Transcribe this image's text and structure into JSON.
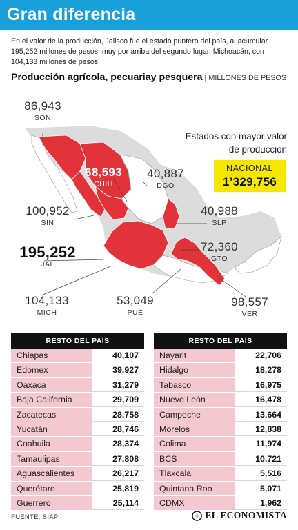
{
  "header": {
    "title": "Gran diferencia"
  },
  "intro": {
    "text": "En el valor de la producción, Jalisco  fue el estado puntero del país, al acumular 195,252 millones de pesos, muy por arriba del segundo lugar, Michoacán, con 104,133 millones de pesos."
  },
  "subhead": {
    "bold": "Producción agrícola, pecuariay pesquera",
    "thin": " | MILLONES DE PESOS"
  },
  "side_title": {
    "line1": "Estados con mayor valor",
    "line2": "de producción"
  },
  "nacional": {
    "label": "NACIONAL",
    "value": "1’329,756"
  },
  "colors": {
    "header": "#1aa0d8",
    "highlight_states": "#e2333b",
    "other_states": "#ffffff",
    "map_background": "#dcdcdc",
    "table_name_bg": "#f3c9cf",
    "nacional_bg": "#f5e600"
  },
  "chart_data": [
    {
      "type": "map",
      "title": "Producción agrícola, pecuariay pesquera",
      "unit": "MILLONES DE PESOS",
      "states": [
        {
          "code": "SON",
          "value": "86,943"
        },
        {
          "code": "CHIH",
          "value": "68,593"
        },
        {
          "code": "DGO",
          "value": "40,887"
        },
        {
          "code": "SIN",
          "value": "100,952"
        },
        {
          "code": "SLP",
          "value": "40,988"
        },
        {
          "code": "JAL",
          "value": "195,252"
        },
        {
          "code": "GTO",
          "value": "72,360"
        },
        {
          "code": "MICH",
          "value": "104,133"
        },
        {
          "code": "PUE",
          "value": "53,049"
        },
        {
          "code": "VER",
          "value": "98,557"
        }
      ],
      "nacional": "1’329,756"
    },
    {
      "type": "table",
      "title": "RESTO DEL PAÍS",
      "rows": [
        {
          "name": "Chiapas",
          "value": "40,107"
        },
        {
          "name": "Edomex",
          "value": "39,927"
        },
        {
          "name": "Oaxaca",
          "value": "31,279"
        },
        {
          "name": "Baja California",
          "value": "29,709"
        },
        {
          "name": "Zacatecas",
          "value": "28,758"
        },
        {
          "name": "Yucatán",
          "value": "28,746"
        },
        {
          "name": "Coahuila",
          "value": "28,374"
        },
        {
          "name": "Tamaulipas",
          "value": "27,808"
        },
        {
          "name": "Aguascalientes",
          "value": "26,217"
        },
        {
          "name": "Querétaro",
          "value": "25,819"
        },
        {
          "name": "Guerrero",
          "value": "25,114"
        }
      ]
    },
    {
      "type": "table",
      "title": "RESTO DEL PAÍS",
      "rows": [
        {
          "name": "Nayarit",
          "value": "22,706"
        },
        {
          "name": "Hidalgo",
          "value": "18,278"
        },
        {
          "name": "Tabasco",
          "value": "16,975"
        },
        {
          "name": "Nuevo León",
          "value": "16,478"
        },
        {
          "name": "Campeche",
          "value": "13,664"
        },
        {
          "name": "Morelos",
          "value": "12,838"
        },
        {
          "name": "Colima",
          "value": "11,974"
        },
        {
          "name": "BCS",
          "value": "10,721"
        },
        {
          "name": "Tlaxcala",
          "value": "5,516"
        },
        {
          "name": "Quintana Roo",
          "value": "5,071"
        },
        {
          "name": "CDMX",
          "value": "1,962"
        }
      ]
    }
  ],
  "footer": {
    "source": "FUENTE: SIAP",
    "brand": "EL ECONOMISTA",
    "brand_icon": "el-economista-logo-icon"
  }
}
